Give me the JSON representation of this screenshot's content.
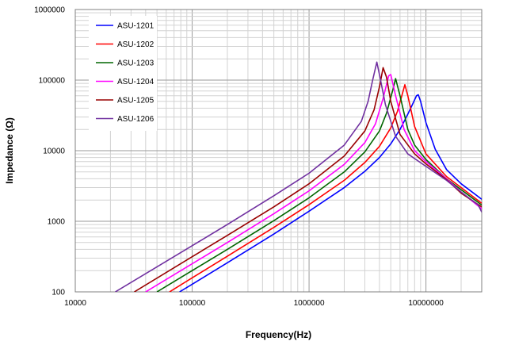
{
  "chart_data": {
    "type": "line",
    "xlabel": "Frequency(Hz)",
    "ylabel": "Impedance (Ω)",
    "x_scale": "log",
    "y_scale": "log",
    "xlim": [
      10000,
      30000000
    ],
    "ylim": [
      100,
      1000000
    ],
    "x_ticks": [
      "10000",
      "100000",
      "1000000",
      "10000000"
    ],
    "y_ticks": [
      "100",
      "1000",
      "10000",
      "100000",
      "1000000"
    ],
    "grid": true,
    "legend_position": "top-left",
    "series": [
      {
        "name": "ASU-1201",
        "color": "#0000ff",
        "x": [
          78000,
          100000,
          200000,
          500000,
          1000000,
          2000000,
          3000000,
          4000000,
          5000000,
          6000000,
          7000000,
          7800000,
          8300000,
          8600000,
          9000000,
          10000000,
          12000000,
          15000000,
          20000000,
          30000000
        ],
        "values": [
          100,
          128,
          258,
          660,
          1390,
          3000,
          5100,
          8000,
          12500,
          20000,
          33000,
          48000,
          60000,
          62000,
          50000,
          25000,
          10500,
          5400,
          3400,
          2050
        ]
      },
      {
        "name": "ASU-1202",
        "color": "#ff0000",
        "x": [
          64000,
          100000,
          200000,
          500000,
          1000000,
          2000000,
          3000000,
          4000000,
          5000000,
          5700000,
          6300000,
          6600000,
          7000000,
          8000000,
          10000000,
          15000000,
          20000000,
          30000000
        ],
        "values": [
          100,
          158,
          320,
          820,
          1720,
          3800,
          6800,
          11500,
          21000,
          36000,
          65000,
          86000,
          60000,
          22000,
          9000,
          4300,
          3000,
          1800
        ]
      },
      {
        "name": "ASU-1203",
        "color": "#006600",
        "x": [
          50000,
          100000,
          200000,
          500000,
          1000000,
          2000000,
          3000000,
          4000000,
          4600000,
          5200000,
          5500000,
          6000000,
          7000000,
          8000000,
          10000000,
          15000000,
          20000000,
          30000000
        ],
        "values": [
          100,
          200,
          400,
          1020,
          2150,
          5000,
          9600,
          19000,
          34000,
          72000,
          105000,
          60000,
          20000,
          12000,
          7500,
          4000,
          2800,
          1700
        ]
      },
      {
        "name": "ASU-1204",
        "color": "#ff00ff",
        "x": [
          40000,
          100000,
          200000,
          500000,
          1000000,
          2000000,
          3000000,
          3700000,
          4300000,
          4800000,
          5000000,
          5500000,
          6500000,
          8000000,
          10000000,
          15000000,
          20000000,
          30000000
        ],
        "values": [
          100,
          250,
          500,
          1280,
          2700,
          6400,
          13000,
          24000,
          55000,
          115000,
          120000,
          60000,
          20000,
          10000,
          7000,
          4000,
          2600,
          1500
        ]
      },
      {
        "name": "ASU-1205",
        "color": "#990000",
        "x": [
          32000,
          100000,
          200000,
          500000,
          1000000,
          2000000,
          3000000,
          3600000,
          4000000,
          4300000,
          4600000,
          5000000,
          6000000,
          8000000,
          10000000,
          15000000,
          20000000,
          30000000
        ],
        "values": [
          100,
          315,
          630,
          1600,
          3400,
          8400,
          19000,
          38000,
          80000,
          150000,
          110000,
          50000,
          17000,
          9000,
          6500,
          3900,
          2500,
          1600
        ]
      },
      {
        "name": "ASU-1206",
        "color": "#7030a0",
        "x": [
          22000,
          100000,
          200000,
          500000,
          1000000,
          2000000,
          2800000,
          3200000,
          3500000,
          3800000,
          4000000,
          4500000,
          5500000,
          7000000,
          10000000,
          15000000,
          20000000,
          28000000,
          30000000
        ],
        "values": [
          100,
          450,
          900,
          2300,
          4800,
          12000,
          26000,
          50000,
          100000,
          180000,
          120000,
          45000,
          16000,
          9000,
          6000,
          3800,
          2600,
          1700,
          1350
        ]
      }
    ]
  }
}
